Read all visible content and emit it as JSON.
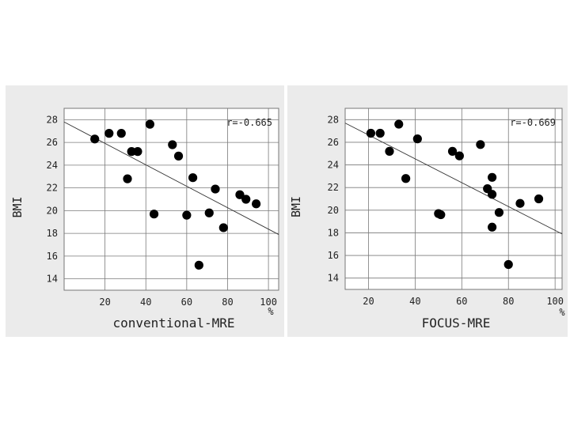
{
  "chart_data": [
    {
      "type": "scatter",
      "title": "",
      "xlabel": "conventional-MRE",
      "ylabel": "BMI",
      "x_unit": "%",
      "annotation": "r=-0.665",
      "xlim": [
        0,
        105
      ],
      "ylim": [
        13,
        29
      ],
      "xticks": [
        20,
        40,
        60,
        80,
        100
      ],
      "yticks": [
        14,
        16,
        18,
        20,
        22,
        24,
        26,
        28
      ],
      "grid": true,
      "points": [
        {
          "x": 15,
          "y": 26.3
        },
        {
          "x": 22,
          "y": 26.8
        },
        {
          "x": 28,
          "y": 26.8
        },
        {
          "x": 31,
          "y": 22.8
        },
        {
          "x": 33,
          "y": 25.2
        },
        {
          "x": 36,
          "y": 25.2
        },
        {
          "x": 42,
          "y": 27.6
        },
        {
          "x": 44,
          "y": 19.7
        },
        {
          "x": 53,
          "y": 25.8
        },
        {
          "x": 56,
          "y": 24.8
        },
        {
          "x": 60,
          "y": 19.6
        },
        {
          "x": 63,
          "y": 22.9
        },
        {
          "x": 66,
          "y": 15.2
        },
        {
          "x": 71,
          "y": 19.8
        },
        {
          "x": 74,
          "y": 21.9
        },
        {
          "x": 78,
          "y": 18.5
        },
        {
          "x": 86,
          "y": 21.4
        },
        {
          "x": 89,
          "y": 21.0
        },
        {
          "x": 94,
          "y": 20.6
        }
      ],
      "trendline": {
        "x": [
          0,
          105
        ],
        "y": [
          27.8,
          17.9
        ]
      }
    },
    {
      "type": "scatter",
      "title": "",
      "xlabel": "FOCUS-MRE",
      "ylabel": "BMI",
      "x_unit": "%",
      "annotation": "r=-0.669",
      "xlim": [
        10,
        103
      ],
      "ylim": [
        13,
        29
      ],
      "xticks": [
        20,
        40,
        60,
        80,
        100
      ],
      "yticks": [
        14,
        16,
        18,
        20,
        22,
        24,
        26,
        28
      ],
      "grid": true,
      "points": [
        {
          "x": 21,
          "y": 26.8
        },
        {
          "x": 25,
          "y": 26.8
        },
        {
          "x": 29,
          "y": 25.2
        },
        {
          "x": 33,
          "y": 27.6
        },
        {
          "x": 36,
          "y": 22.8
        },
        {
          "x": 41,
          "y": 26.3
        },
        {
          "x": 50,
          "y": 19.7
        },
        {
          "x": 51,
          "y": 19.6
        },
        {
          "x": 56,
          "y": 25.2
        },
        {
          "x": 59,
          "y": 24.8
        },
        {
          "x": 68,
          "y": 25.8
        },
        {
          "x": 71,
          "y": 21.9
        },
        {
          "x": 73,
          "y": 22.9
        },
        {
          "x": 73,
          "y": 21.4
        },
        {
          "x": 73,
          "y": 18.5
        },
        {
          "x": 76,
          "y": 19.8
        },
        {
          "x": 80,
          "y": 15.2
        },
        {
          "x": 85,
          "y": 20.6
        },
        {
          "x": 93,
          "y": 21.0
        }
      ],
      "trendline": {
        "x": [
          10,
          103
        ],
        "y": [
          27.7,
          17.9
        ]
      }
    }
  ]
}
